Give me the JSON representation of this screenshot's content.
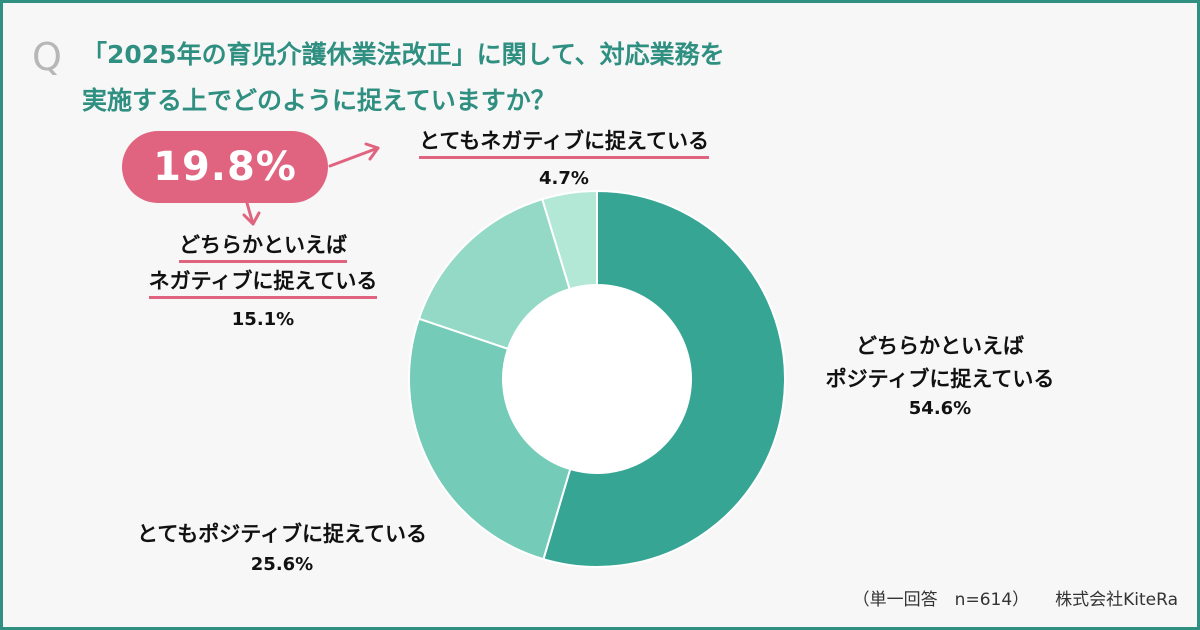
{
  "question": {
    "mark": "Q",
    "line1": "「2025年の育児介護休業法改正」に関して、対応業務を",
    "line2": "実施する上でどのように捉えていますか？"
  },
  "highlight": {
    "value": "19.8%"
  },
  "labels": {
    "very_negative": {
      "text": "とてもネガティブに捉えている",
      "pct": "4.7%"
    },
    "somewhat_negative": {
      "line1": "どちらかといえば",
      "line2": "ネガティブに捉えている",
      "pct": "15.1%"
    },
    "somewhat_positive": {
      "line1": "どちらかといえば",
      "line2": "ポジティブに捉えている",
      "pct": "54.6%"
    },
    "very_positive": {
      "text": "とてもポジティブに捉えている",
      "pct": "25.6%"
    }
  },
  "footer": {
    "note": "（単一回答　n=614）",
    "source": "株式会社KiteRa"
  },
  "colors": {
    "frame": "#2f8f80",
    "question": "#2f8f80",
    "accent": "#e0647f",
    "slice_somewhat_positive": "#36a594",
    "slice_very_positive": "#74cbb7",
    "slice_somewhat_negative": "#93d9c6",
    "slice_very_negative": "#b3e8d6"
  },
  "chart_data": {
    "type": "pie",
    "donut": true,
    "categories": [
      "どちらかといえばポジティブに捉えている",
      "とてもポジティブに捉えている",
      "どちらかといえばネガティブに捉えている",
      "とてもネガティブに捉えている"
    ],
    "values": [
      54.6,
      25.6,
      15.1,
      4.7
    ],
    "unit": "%",
    "start": "top",
    "direction": "clockwise"
  }
}
